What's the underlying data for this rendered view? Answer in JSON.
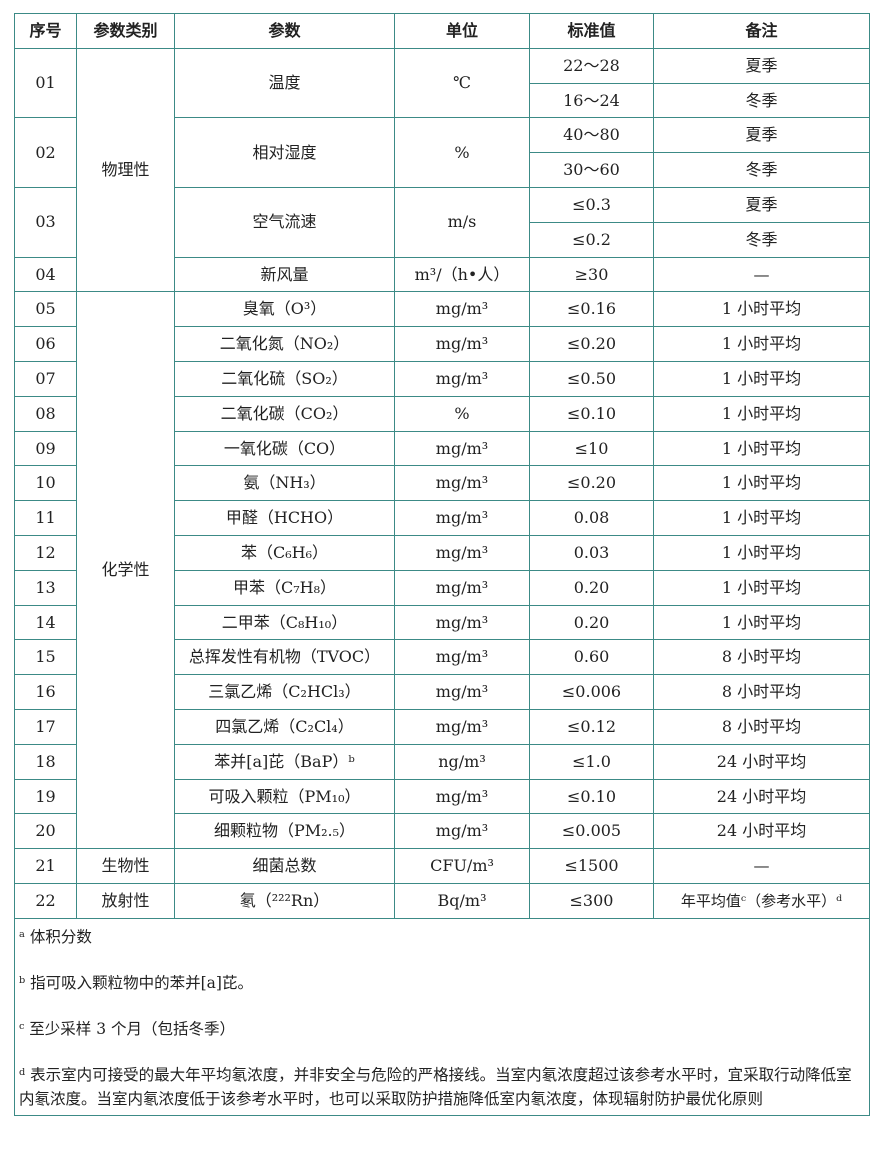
{
  "headers": [
    "序号",
    "参数类别",
    "参数",
    "单位",
    "标准值",
    "备注"
  ],
  "categories": {
    "physical": "物理性",
    "chemical": "化学性",
    "biological": "生物性",
    "radioactive": "放射性"
  },
  "rows": [
    {
      "no": "01",
      "param": "温度",
      "unit": "℃",
      "values": [
        {
          "v": "22～28",
          "note": "夏季"
        },
        {
          "v": "16～24",
          "note": "冬季"
        }
      ]
    },
    {
      "no": "02",
      "param": "相对湿度",
      "unit": "%",
      "values": [
        {
          "v": "40～80",
          "note": "夏季"
        },
        {
          "v": "30～60",
          "note": "冬季"
        }
      ]
    },
    {
      "no": "03",
      "param": "空气流速",
      "unit": "m/s",
      "values": [
        {
          "v": "≤0.3",
          "note": "夏季"
        },
        {
          "v": "≤0.2",
          "note": "冬季"
        }
      ]
    },
    {
      "no": "04",
      "param": "新风量",
      "unit": "m³/（h•人）",
      "value": "≥30",
      "note": "—"
    },
    {
      "no": "05",
      "param": "臭氧（O³）",
      "unit": "mg/m³",
      "value": "≤0.16",
      "note": "1 小时平均"
    },
    {
      "no": "06",
      "param": "二氧化氮（NO₂）",
      "unit": "mg/m³",
      "value": "≤0.20",
      "note": "1 小时平均"
    },
    {
      "no": "07",
      "param": "二氧化硫（SO₂）",
      "unit": "mg/m³",
      "value": "≤0.50",
      "note": "1 小时平均"
    },
    {
      "no": "08",
      "param": "二氧化碳（CO₂）",
      "unit": "%",
      "value": "≤0.10",
      "note": "1 小时平均"
    },
    {
      "no": "09",
      "param": "一氧化碳（CO）",
      "unit": "mg/m³",
      "value": "≤10",
      "note": "1 小时平均"
    },
    {
      "no": "10",
      "param": "氨（NH₃）",
      "unit": "mg/m³",
      "value": "≤0.20",
      "note": "1 小时平均"
    },
    {
      "no": "11",
      "param": "甲醛（HCHO）",
      "unit": "mg/m³",
      "value": "0.08",
      "note": "1 小时平均"
    },
    {
      "no": "12",
      "param": "苯（C₆H₆）",
      "unit": "mg/m³",
      "value": "0.03",
      "note": "1 小时平均"
    },
    {
      "no": "13",
      "param": "甲苯（C₇H₈）",
      "unit": "mg/m³",
      "value": "0.20",
      "note": "1 小时平均"
    },
    {
      "no": "14",
      "param": "二甲苯（C₈H₁₀）",
      "unit": "mg/m³",
      "value": "0.20",
      "note": "1 小时平均"
    },
    {
      "no": "15",
      "param": "总挥发性有机物（TVOC）",
      "unit": "mg/m³",
      "value": "0.60",
      "note": "8 小时平均"
    },
    {
      "no": "16",
      "param": "三氯乙烯（C₂HCl₃）",
      "unit": "mg/m³",
      "value": "≤0.006",
      "note": "8 小时平均"
    },
    {
      "no": "17",
      "param": "四氯乙烯（C₂Cl₄）",
      "unit": "mg/m³",
      "value": "≤0.12",
      "note": "8 小时平均"
    },
    {
      "no": "18",
      "param": "苯并[a]芘（BaP）ᵇ",
      "unit": "ng/m³",
      "value": "≤1.0",
      "note": "24 小时平均"
    },
    {
      "no": "19",
      "param": "可吸入颗粒（PM₁₀）",
      "unit": "mg/m³",
      "value": "≤0.10",
      "note": "24 小时平均"
    },
    {
      "no": "20",
      "param": "细颗粒物（PM₂.₅）",
      "unit": "mg/m³",
      "value": "≤0.005",
      "note": "24 小时平均"
    },
    {
      "no": "21",
      "param": "细菌总数",
      "unit": "CFU/m³",
      "value": "≤1500",
      "note": "—"
    },
    {
      "no": "22",
      "param": "氡（²²²Rn）",
      "unit": "Bq/m³",
      "value": "≤300",
      "note": "年平均值ᶜ（参考水平）ᵈ"
    }
  ],
  "footnotes": [
    "ᵃ 体积分数",
    "ᵇ 指可吸入颗粒物中的苯并[a]芘。",
    "ᶜ 至少采样 3 个月（包括冬季）",
    "ᵈ 表示室内可接受的最大年平均氡浓度，并非安全与危险的严格接线。当室内氡浓度超过该参考水平时，宜采取行动降低室内氡浓度。当室内氡浓度低于该参考水平时，也可以采取防护措施降低室内氡浓度，体现辐射防护最优化原则"
  ]
}
